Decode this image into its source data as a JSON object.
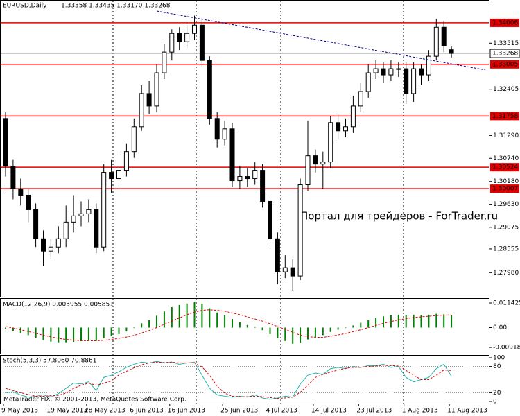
{
  "chart_data": [
    {
      "type": "candlestick",
      "title": "EURUSD,Daily",
      "subtitle": "1.33358 1.33435 1.33170 1.33268",
      "categories": [
        "9 May 2013",
        null,
        null,
        null,
        null,
        null,
        "19 May 2013",
        null,
        null,
        null,
        null,
        "28 May 2013",
        null,
        null,
        null,
        null,
        null,
        "6 Jun 2013",
        null,
        null,
        null,
        null,
        "16 Jun 2013",
        null,
        null,
        null,
        null,
        null,
        null,
        "25 Jun 2013",
        null,
        null,
        null,
        null,
        null,
        "4 Jul 2013",
        null,
        null,
        null,
        null,
        null,
        "14 Jul 2013",
        null,
        null,
        null,
        null,
        null,
        "23 Jul 2013",
        null,
        null,
        null,
        null,
        null,
        "1 Aug 2013",
        null,
        null,
        null,
        null,
        null,
        "11 Aug 2013"
      ],
      "open": [
        1.317,
        1.3055,
        1.3,
        1.2985,
        1.295,
        1.288,
        1.285,
        1.286,
        1.288,
        1.292,
        1.2935,
        1.294,
        1.295,
        1.286,
        1.304,
        1.3025,
        1.3045,
        1.309,
        1.315,
        1.323,
        1.32,
        1.328,
        1.333,
        1.3375,
        1.3355,
        1.3375,
        1.3395,
        1.331,
        1.317,
        1.312,
        1.3145,
        1.302,
        1.303,
        1.3025,
        1.3045,
        1.297,
        1.288,
        1.28,
        1.281,
        1.279,
        1.301,
        1.308,
        1.306,
        1.3065,
        1.316,
        1.314,
        1.315,
        1.32,
        1.3235,
        1.328,
        1.329,
        1.3275,
        1.329,
        1.329,
        1.323,
        1.329,
        1.3275,
        1.332,
        1.339,
        1.33358
      ],
      "high": [
        1.3185,
        1.307,
        1.3025,
        1.3,
        1.2965,
        1.29,
        1.288,
        1.291,
        1.296,
        1.2985,
        1.297,
        1.2975,
        1.2965,
        1.306,
        1.307,
        1.3085,
        1.311,
        1.317,
        1.325,
        1.326,
        1.33,
        1.335,
        1.3385,
        1.339,
        1.3395,
        1.3418,
        1.341,
        1.332,
        1.3185,
        1.3165,
        1.316,
        1.3055,
        1.305,
        1.3065,
        1.306,
        1.2985,
        1.2895,
        1.284,
        1.283,
        1.3025,
        1.3165,
        1.3095,
        1.309,
        1.3175,
        1.318,
        1.317,
        1.3225,
        1.3255,
        1.33,
        1.331,
        1.3305,
        1.331,
        1.3305,
        1.3305,
        1.3305,
        1.33,
        1.3335,
        1.341,
        1.3405,
        1.33435
      ],
      "low": [
        1.303,
        1.2975,
        1.296,
        1.292,
        1.286,
        1.2815,
        1.283,
        1.2845,
        1.286,
        1.2895,
        1.291,
        1.292,
        1.2845,
        1.285,
        1.299,
        1.3,
        1.303,
        1.3075,
        1.314,
        1.318,
        1.3185,
        1.3265,
        1.331,
        1.3335,
        1.334,
        1.336,
        1.3295,
        1.3155,
        1.31,
        1.3105,
        1.3005,
        1.3,
        1.3005,
        1.301,
        1.2955,
        1.2865,
        1.277,
        1.2785,
        1.2755,
        1.278,
        1.2995,
        1.304,
        1.3,
        1.305,
        1.312,
        1.3125,
        1.3135,
        1.3185,
        1.322,
        1.3265,
        1.3255,
        1.326,
        1.327,
        1.3205,
        1.321,
        1.325,
        1.326,
        1.331,
        1.333,
        1.3317
      ],
      "close": [
        1.3055,
        1.3,
        1.2985,
        1.295,
        1.288,
        1.285,
        1.286,
        1.288,
        1.292,
        1.2935,
        1.294,
        1.295,
        1.286,
        1.304,
        1.3025,
        1.3045,
        1.309,
        1.315,
        1.323,
        1.32,
        1.328,
        1.333,
        1.3375,
        1.3355,
        1.3375,
        1.3395,
        1.331,
        1.317,
        1.312,
        1.3145,
        1.302,
        1.303,
        1.3025,
        1.3045,
        1.297,
        1.288,
        1.28,
        1.281,
        1.279,
        1.301,
        1.308,
        1.306,
        1.3065,
        1.316,
        1.314,
        1.315,
        1.32,
        1.3235,
        1.328,
        1.329,
        1.3275,
        1.329,
        1.329,
        1.323,
        1.329,
        1.3275,
        1.332,
        1.339,
        1.3345,
        1.33268
      ],
      "ylim": [
        1.274,
        1.3454
      ],
      "yticks": [
        1.33515,
        1.32405,
        {
          "value": 1.3129,
          "label": "1.31290"
        },
        {
          "value": 1.3074,
          "label": "1.30740"
        },
        {
          "value": 1.3018,
          "label": "1.30180"
        },
        {
          "value": 1.2963,
          "label": "1.29630"
        },
        1.29075,
        1.28555,
        {
          "value": 1.2798,
          "label": "1.27980"
        }
      ],
      "levels": {
        "color": "#e00000",
        "values": [
          1.34006,
          1.33005,
          1.31758,
          1.30524,
          1.30007
        ]
      },
      "last_price": 1.33268,
      "trendline": {
        "color": "#00008b",
        "x": [
          20,
          63.5
        ],
        "y": [
          1.3429,
          1.3287
        ]
      },
      "annotation": "Портал для трейдеров - ForTrader.ru"
    },
    {
      "type": "macd",
      "title": "MACD(12,26,9) 0.005955 0.005851",
      "histogram": {
        "color": "#008000",
        "values": [
          -0.0005,
          -0.0015,
          -0.0025,
          -0.0035,
          -0.0048,
          -0.0058,
          -0.0065,
          -0.0068,
          -0.0068,
          -0.0066,
          -0.0063,
          -0.006,
          -0.0062,
          -0.005,
          -0.004,
          -0.003,
          -0.0018,
          -0.0002,
          0.002,
          0.0035,
          0.0055,
          0.0075,
          0.0095,
          0.0105,
          0.0112,
          0.0118,
          0.011,
          0.009,
          0.007,
          0.0058,
          0.004,
          0.0025,
          0.0012,
          0.0003,
          -0.0012,
          -0.003,
          -0.005,
          -0.0062,
          -0.0075,
          -0.007,
          -0.0055,
          -0.0045,
          -0.0035,
          -0.002,
          -0.001,
          -0.0002,
          0.001,
          0.0022,
          0.0035,
          0.0045,
          0.0052,
          0.0058,
          0.006,
          0.0058,
          0.006,
          0.0058,
          0.006,
          0.0064,
          0.0062,
          0.005955
        ]
      },
      "signal": {
        "color": "#e00000",
        "values": [
          0.0005,
          -0.0002,
          -0.001,
          -0.0018,
          -0.0027,
          -0.0035,
          -0.0043,
          -0.005,
          -0.0055,
          -0.0058,
          -0.006,
          -0.0061,
          -0.0061,
          -0.0059,
          -0.0055,
          -0.005,
          -0.0044,
          -0.0036,
          -0.0025,
          -0.0013,
          0.0,
          0.0015,
          0.003,
          0.0045,
          0.006,
          0.0072,
          0.008,
          0.0083,
          0.008,
          0.0076,
          0.0068,
          0.006,
          0.005,
          0.004,
          0.003,
          0.0018,
          0.0005,
          -0.0008,
          -0.0022,
          -0.0035,
          -0.0042,
          -0.0045,
          -0.0045,
          -0.004,
          -0.0034,
          -0.0027,
          -0.0019,
          -0.001,
          0.0,
          0.001,
          0.002,
          0.0028,
          0.0036,
          0.0042,
          0.0047,
          0.005,
          0.0053,
          0.0056,
          0.0058,
          0.005851
        ]
      },
      "ylim": [
        -0.01207,
        0.01336
      ],
      "yticks": [
        0.011425,
        {
          "value": 0,
          "label": "0.00"
        },
        -0.009187
      ]
    },
    {
      "type": "stochastic",
      "title": "Stoch(5,3,3) 57.8060 70.8861",
      "main": {
        "color": "#20b2aa",
        "values": [
          20,
          22,
          15,
          10,
          12,
          15,
          10,
          18,
          30,
          42,
          40,
          45,
          25,
          55,
          60,
          68,
          78,
          85,
          90,
          88,
          92,
          88,
          90,
          85,
          88,
          90,
          60,
          30,
          15,
          12,
          10,
          12,
          10,
          15,
          8,
          5,
          8,
          12,
          10,
          40,
          60,
          65,
          62,
          75,
          78,
          75,
          80,
          78,
          82,
          82,
          85,
          78,
          80,
          55,
          45,
          50,
          55,
          75,
          85,
          57.806
        ]
      },
      "signal": {
        "color": "#e00000",
        "values": [
          30,
          25,
          20,
          16,
          12,
          12,
          13,
          14,
          19,
          30,
          37,
          42,
          37,
          42,
          47,
          61,
          69,
          77,
          84,
          88,
          90,
          89,
          90,
          88,
          88,
          88,
          79,
          60,
          35,
          19,
          12,
          11,
          11,
          12,
          11,
          9,
          7,
          8,
          10,
          21,
          37,
          55,
          62,
          67,
          72,
          76,
          78,
          78,
          80,
          81,
          83,
          82,
          81,
          71,
          60,
          50,
          50,
          60,
          72,
          70.8861
        ]
      },
      "ylim": [
        0,
        100
      ],
      "yticks": [
        100,
        80,
        20,
        0
      ],
      "levels": [
        80,
        20
      ],
      "footer": "MetaTrader FIX, © 2001-2013, MetaQuotes Software Corp."
    }
  ]
}
